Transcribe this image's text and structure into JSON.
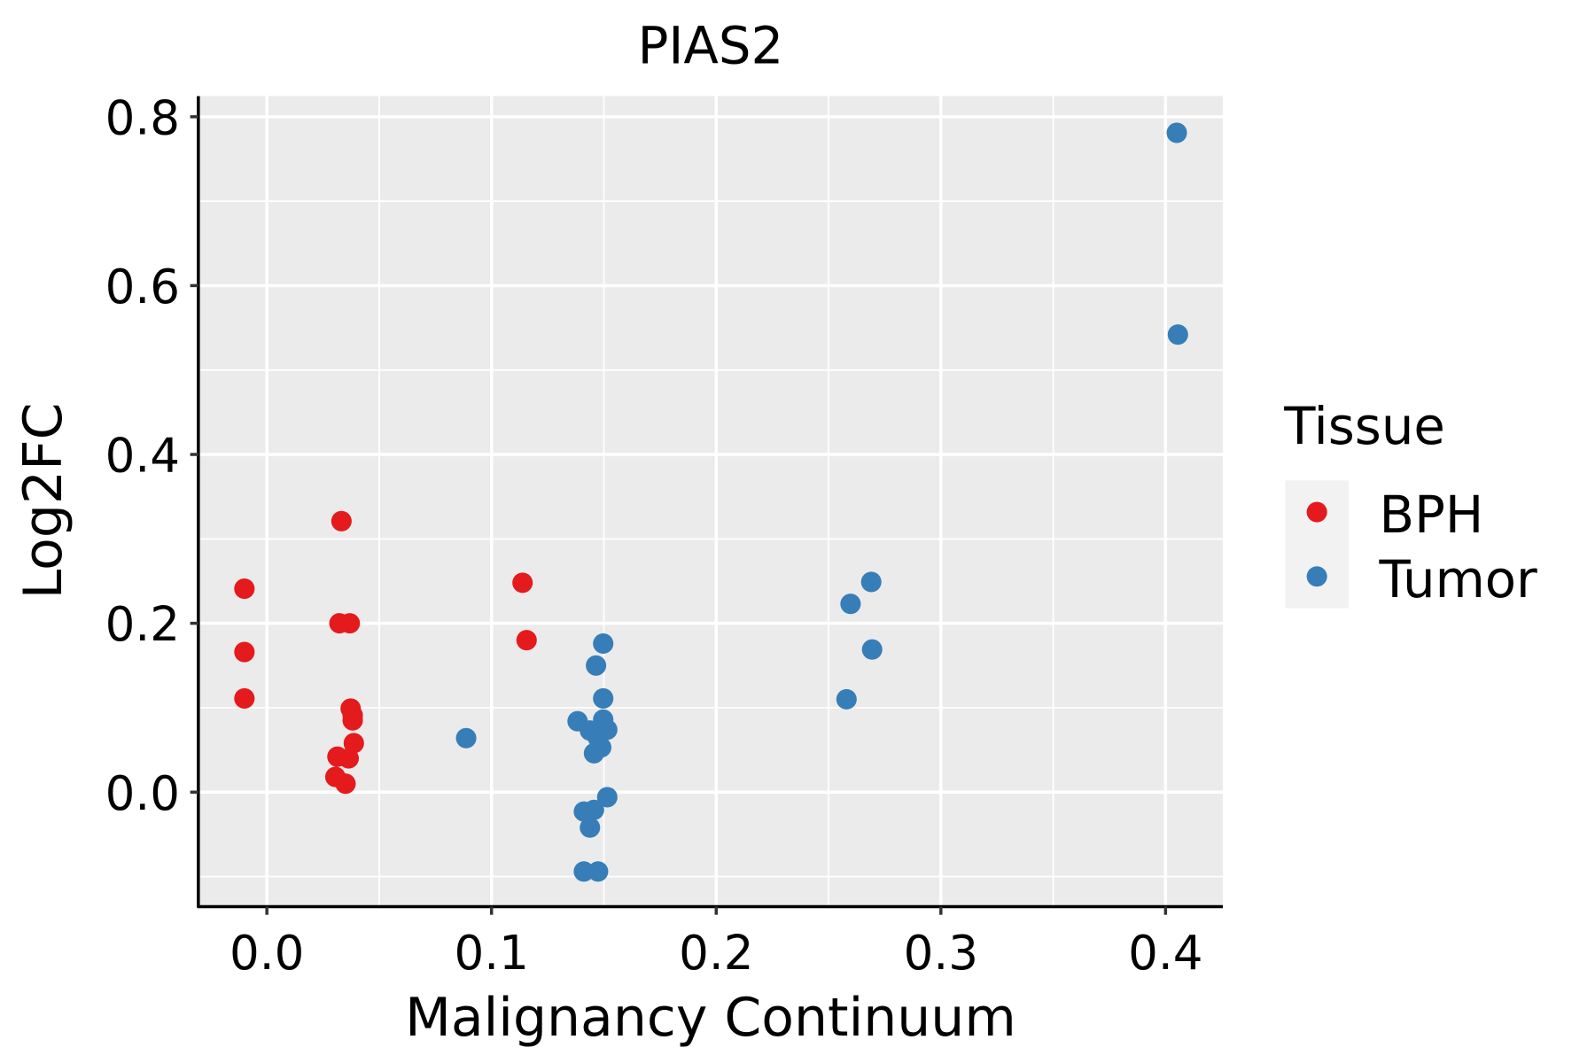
{
  "chart_data": {
    "type": "scatter",
    "title": "PIAS2",
    "xlabel": "Malignancy Continuum",
    "ylabel": "Log2FC",
    "xlim": [
      -0.0305,
      0.4255
    ],
    "ylim": [
      -0.1356,
      0.8245
    ],
    "xticks": [
      0.0,
      0.1,
      0.2,
      0.3,
      0.4
    ],
    "xtick_labels": [
      "0.0",
      "0.1",
      "0.2",
      "0.3",
      "0.4"
    ],
    "yticks": [
      0.0,
      0.2,
      0.4,
      0.6,
      0.8
    ],
    "ytick_labels": [
      "0.0",
      "0.2",
      "0.4",
      "0.6",
      "0.8"
    ],
    "grid": true,
    "legend": {
      "title": "Tissue",
      "placement": "right"
    },
    "series": [
      {
        "name": "BPH",
        "color": "#E41A1C",
        "points": [
          [
            -0.01,
            0.241
          ],
          [
            -0.01,
            0.166
          ],
          [
            -0.01,
            0.111
          ],
          [
            0.0332,
            0.321
          ],
          [
            0.0323,
            0.2
          ],
          [
            0.0369,
            0.2
          ],
          [
            0.0373,
            0.099
          ],
          [
            0.0382,
            0.091
          ],
          [
            0.0382,
            0.085
          ],
          [
            0.0387,
            0.058
          ],
          [
            0.0314,
            0.042
          ],
          [
            0.0364,
            0.04
          ],
          [
            0.0305,
            0.018
          ],
          [
            0.035,
            0.01
          ],
          [
            0.1138,
            0.248
          ],
          [
            0.1156,
            0.18
          ]
        ]
      },
      {
        "name": "Tumor",
        "color": "#377EB8",
        "points": [
          [
            0.0887,
            0.064
          ],
          [
            0.1497,
            0.176
          ],
          [
            0.1465,
            0.15
          ],
          [
            0.1497,
            0.111
          ],
          [
            0.1383,
            0.084
          ],
          [
            0.1438,
            0.073
          ],
          [
            0.1497,
            0.086
          ],
          [
            0.1515,
            0.074
          ],
          [
            0.1474,
            0.064
          ],
          [
            0.1488,
            0.053
          ],
          [
            0.1456,
            0.046
          ],
          [
            0.1515,
            -0.006
          ],
          [
            0.1411,
            -0.023
          ],
          [
            0.1456,
            -0.021
          ],
          [
            0.1438,
            -0.042
          ],
          [
            0.1411,
            -0.094
          ],
          [
            0.1474,
            -0.094
          ],
          [
            0.258,
            0.11
          ],
          [
            0.2598,
            0.223
          ],
          [
            0.269,
            0.249
          ],
          [
            0.2694,
            0.169
          ],
          [
            0.405,
            0.781
          ],
          [
            0.4055,
            0.542
          ]
        ]
      }
    ]
  }
}
